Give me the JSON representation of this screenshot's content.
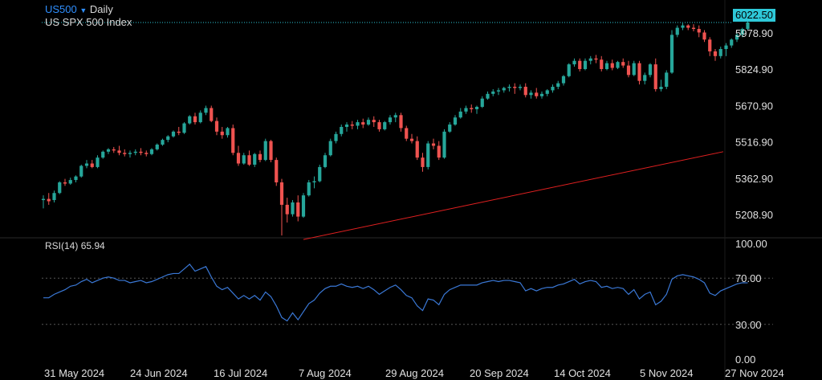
{
  "header": {
    "symbol": "US500",
    "timeframe": "Daily",
    "name": "US SPX 500 Index",
    "dropdown_icon": "triangle-down-icon"
  },
  "current_price": "6022.50",
  "rsi": {
    "label": "RSI(14)",
    "value": "65.94"
  },
  "colors": {
    "up": "#26a69a",
    "down": "#ef5350",
    "rsi": "#3a78d6",
    "trend": "#e02020",
    "accent": "#2f8fff",
    "price_line": "#2ec8d8",
    "background": "#000000"
  },
  "chart_data": [
    {
      "type": "candlestick",
      "title": "",
      "ylim": [
        5100,
        6070
      ],
      "y_ticks": [
        "5978.90",
        "5824.90",
        "5670.90",
        "5516.90",
        "5362.90",
        "5208.90"
      ],
      "x_ticks": [
        "31 May 2024",
        "24 Jun 2024",
        "16 Jul 2024",
        "7 Aug 2024",
        "29 Aug 2024",
        "20 Sep 2024",
        "14 Oct 2024",
        "5 Nov 2024",
        "27 Nov 2024"
      ],
      "start_date": "2024-05-28",
      "values_open_high_low_close": [
        [
          5270,
          5290,
          5235,
          5275
        ],
        [
          5275,
          5300,
          5250,
          5265
        ],
        [
          5270,
          5310,
          5260,
          5300
        ],
        [
          5300,
          5350,
          5295,
          5345
        ],
        [
          5345,
          5360,
          5330,
          5340
        ],
        [
          5340,
          5365,
          5335,
          5355
        ],
        [
          5355,
          5375,
          5345,
          5370
        ],
        [
          5370,
          5420,
          5365,
          5415
        ],
        [
          5415,
          5440,
          5405,
          5425
        ],
        [
          5425,
          5440,
          5405,
          5410
        ],
        [
          5410,
          5460,
          5405,
          5450
        ],
        [
          5450,
          5480,
          5445,
          5475
        ],
        [
          5475,
          5490,
          5465,
          5485
        ],
        [
          5485,
          5495,
          5470,
          5480
        ],
        [
          5480,
          5500,
          5460,
          5470
        ],
        [
          5470,
          5485,
          5455,
          5465
        ],
        [
          5465,
          5480,
          5450,
          5470
        ],
        [
          5470,
          5485,
          5460,
          5475
        ],
        [
          5475,
          5490,
          5460,
          5470
        ],
        [
          5470,
          5480,
          5455,
          5465
        ],
        [
          5465,
          5490,
          5460,
          5485
        ],
        [
          5485,
          5510,
          5480,
          5505
        ],
        [
          5505,
          5530,
          5500,
          5525
        ],
        [
          5525,
          5545,
          5515,
          5540
        ],
        [
          5540,
          5565,
          5535,
          5560
        ],
        [
          5560,
          5580,
          5545,
          5555
        ],
        [
          5555,
          5600,
          5550,
          5595
        ],
        [
          5595,
          5630,
          5590,
          5625
        ],
        [
          5625,
          5640,
          5590,
          5600
        ],
        [
          5600,
          5650,
          5595,
          5640
        ],
        [
          5640,
          5670,
          5630,
          5660
        ],
        [
          5660,
          5670,
          5600,
          5605
        ],
        [
          5605,
          5620,
          5545,
          5560
        ],
        [
          5560,
          5580,
          5530,
          5545
        ],
        [
          5545,
          5580,
          5535,
          5575
        ],
        [
          5575,
          5590,
          5460,
          5470
        ],
        [
          5470,
          5500,
          5415,
          5425
        ],
        [
          5425,
          5470,
          5420,
          5460
        ],
        [
          5460,
          5480,
          5415,
          5420
        ],
        [
          5420,
          5470,
          5410,
          5465
        ],
        [
          5465,
          5480,
          5430,
          5440
        ],
        [
          5440,
          5530,
          5435,
          5520
        ],
        [
          5520,
          5525,
          5430,
          5440
        ],
        [
          5440,
          5450,
          5330,
          5345
        ],
        [
          5345,
          5360,
          5120,
          5250
        ],
        [
          5250,
          5280,
          5175,
          5210
        ],
        [
          5210,
          5270,
          5200,
          5260
        ],
        [
          5260,
          5290,
          5180,
          5200
        ],
        [
          5200,
          5300,
          5195,
          5290
        ],
        [
          5290,
          5355,
          5285,
          5345
        ],
        [
          5345,
          5370,
          5320,
          5350
        ],
        [
          5350,
          5420,
          5345,
          5410
        ],
        [
          5410,
          5470,
          5405,
          5460
        ],
        [
          5460,
          5530,
          5455,
          5520
        ],
        [
          5520,
          5560,
          5510,
          5550
        ],
        [
          5550,
          5590,
          5540,
          5580
        ],
        [
          5580,
          5600,
          5560,
          5590
        ],
        [
          5590,
          5605,
          5570,
          5585
        ],
        [
          5585,
          5610,
          5570,
          5600
        ],
        [
          5600,
          5615,
          5575,
          5590
        ],
        [
          5590,
          5620,
          5585,
          5610
        ],
        [
          5610,
          5625,
          5580,
          5600
        ],
        [
          5600,
          5610,
          5560,
          5570
        ],
        [
          5570,
          5605,
          5565,
          5600
        ],
        [
          5600,
          5630,
          5590,
          5620
        ],
        [
          5620,
          5640,
          5600,
          5630
        ],
        [
          5630,
          5640,
          5560,
          5575
        ],
        [
          5575,
          5585,
          5520,
          5530
        ],
        [
          5530,
          5550,
          5510,
          5520
        ],
        [
          5520,
          5540,
          5440,
          5450
        ],
        [
          5450,
          5470,
          5390,
          5410
        ],
        [
          5410,
          5520,
          5400,
          5510
        ],
        [
          5510,
          5530,
          5485,
          5500
        ],
        [
          5500,
          5520,
          5440,
          5450
        ],
        [
          5450,
          5570,
          5445,
          5560
        ],
        [
          5560,
          5600,
          5555,
          5590
        ],
        [
          5590,
          5630,
          5585,
          5620
        ],
        [
          5620,
          5660,
          5615,
          5645
        ],
        [
          5645,
          5670,
          5635,
          5660
        ],
        [
          5660,
          5675,
          5640,
          5655
        ],
        [
          5655,
          5670,
          5635,
          5665
        ],
        [
          5665,
          5710,
          5660,
          5700
        ],
        [
          5700,
          5730,
          5695,
          5720
        ],
        [
          5720,
          5740,
          5710,
          5730
        ],
        [
          5730,
          5745,
          5715,
          5735
        ],
        [
          5735,
          5750,
          5725,
          5745
        ],
        [
          5745,
          5760,
          5730,
          5750
        ],
        [
          5750,
          5765,
          5720,
          5745
        ],
        [
          5745,
          5760,
          5735,
          5750
        ],
        [
          5750,
          5765,
          5705,
          5715
        ],
        [
          5715,
          5735,
          5700,
          5725
        ],
        [
          5725,
          5745,
          5700,
          5710
        ],
        [
          5710,
          5730,
          5700,
          5720
        ],
        [
          5720,
          5740,
          5710,
          5735
        ],
        [
          5735,
          5760,
          5725,
          5750
        ],
        [
          5750,
          5775,
          5740,
          5765
        ],
        [
          5765,
          5800,
          5755,
          5795
        ],
        [
          5795,
          5850,
          5790,
          5845
        ],
        [
          5845,
          5870,
          5835,
          5860
        ],
        [
          5860,
          5870,
          5815,
          5825
        ],
        [
          5825,
          5870,
          5820,
          5860
        ],
        [
          5860,
          5880,
          5845,
          5870
        ],
        [
          5870,
          5885,
          5850,
          5865
        ],
        [
          5865,
          5880,
          5815,
          5825
        ],
        [
          5825,
          5860,
          5820,
          5850
        ],
        [
          5850,
          5865,
          5820,
          5830
        ],
        [
          5830,
          5860,
          5825,
          5855
        ],
        [
          5855,
          5870,
          5830,
          5840
        ],
        [
          5840,
          5860,
          5790,
          5800
        ],
        [
          5800,
          5860,
          5795,
          5850
        ],
        [
          5850,
          5860,
          5760,
          5775
        ],
        [
          5775,
          5810,
          5760,
          5800
        ],
        [
          5800,
          5850,
          5790,
          5845
        ],
        [
          5845,
          5870,
          5730,
          5740
        ],
        [
          5740,
          5780,
          5730,
          5750
        ],
        [
          5750,
          5820,
          5740,
          5810
        ],
        [
          5810,
          5990,
          5805,
          5970
        ],
        [
          5970,
          6010,
          5960,
          6000
        ],
        [
          6000,
          6020,
          5990,
          6010
        ],
        [
          6010,
          6015,
          5990,
          6000
        ],
        [
          6000,
          6015,
          5985,
          5995
        ],
        [
          5995,
          6010,
          5960,
          5980
        ],
        [
          5980,
          5990,
          5940,
          5950
        ],
        [
          5950,
          5960,
          5880,
          5900
        ],
        [
          5900,
          5910,
          5860,
          5880
        ],
        [
          5880,
          5920,
          5870,
          5910
        ],
        [
          5910,
          5935,
          5880,
          5925
        ],
        [
          5925,
          5955,
          5915,
          5950
        ],
        [
          5950,
          5980,
          5940,
          5970
        ],
        [
          5970,
          6000,
          5960,
          5995
        ],
        [
          5995,
          6035,
          5990,
          6022.5
        ]
      ]
    },
    {
      "type": "line",
      "title": "",
      "ylim": [
        0,
        100
      ],
      "y_ticks": [
        "100.00",
        "70.00",
        "30.00",
        "0.00"
      ],
      "series": [
        {
          "name": "RSI(14)",
          "values": [
            53,
            53,
            56,
            58,
            60,
            63,
            64,
            67,
            69,
            66,
            68,
            70,
            71,
            70,
            68,
            68,
            66,
            67,
            68,
            66,
            67,
            69,
            71,
            73,
            74,
            74,
            78,
            82,
            76,
            78,
            80,
            71,
            63,
            60,
            62,
            57,
            52,
            55,
            52,
            55,
            51,
            58,
            54,
            46,
            36,
            33,
            40,
            34,
            41,
            48,
            51,
            57,
            61,
            63,
            63,
            65,
            63,
            62,
            63,
            61,
            63,
            60,
            56,
            59,
            62,
            64,
            60,
            55,
            53,
            46,
            42,
            52,
            51,
            47,
            56,
            60,
            62,
            64,
            64,
            64,
            64,
            66,
            67,
            68,
            67,
            68,
            68,
            67,
            66,
            59,
            61,
            59,
            61,
            62,
            62,
            64,
            65,
            67,
            69,
            65,
            67,
            68,
            67,
            62,
            63,
            61,
            62,
            61,
            56,
            60,
            52,
            56,
            58,
            47,
            50,
            56,
            69,
            72,
            73,
            72,
            71,
            69,
            66,
            57,
            55,
            59,
            61,
            63,
            65,
            66,
            65.94
          ]
        }
      ]
    }
  ]
}
